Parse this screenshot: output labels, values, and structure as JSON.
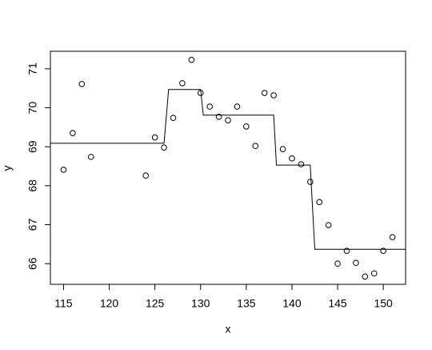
{
  "chart_data": {
    "type": "scatter",
    "x_label": "x",
    "y_label": "y",
    "points": {
      "x": [
        115,
        116,
        117,
        118,
        124,
        125,
        126,
        127,
        128,
        129,
        130,
        131,
        132,
        133,
        134,
        135,
        136,
        137,
        138,
        139,
        140,
        141,
        142,
        143,
        144,
        145,
        146,
        147,
        148,
        149,
        150,
        151
      ],
      "values": [
        68.41,
        69.35,
        70.61,
        68.74,
        68.26,
        69.24,
        68.98,
        69.74,
        70.63,
        71.23,
        70.38,
        70.03,
        69.77,
        69.68,
        70.03,
        69.52,
        69.02,
        70.38,
        70.32,
        68.94,
        68.7,
        68.55,
        68.1,
        67.58,
        66.99,
        66.0,
        66.33,
        66.02,
        65.67,
        65.75,
        66.33,
        66.68
      ],
      "color": "#000000"
    },
    "line": {
      "x": [
        113.56,
        126.0,
        126.5,
        130.0,
        130.3,
        138.0,
        138.3,
        142.0,
        142.5,
        152.44
      ],
      "values": [
        69.09,
        69.09,
        70.47,
        70.47,
        69.81,
        69.81,
        68.53,
        68.53,
        66.37,
        66.37
      ],
      "color": "#000000"
    },
    "xlim": [
      113.56,
      152.44
    ],
    "ylim": [
      65.47,
      71.45
    ],
    "xticks": [
      115,
      120,
      125,
      130,
      135,
      140,
      145,
      150
    ],
    "yticks": [
      66,
      67,
      68,
      69,
      70,
      71
    ]
  }
}
